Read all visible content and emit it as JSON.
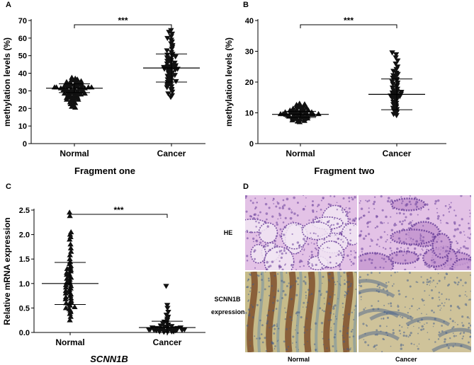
{
  "chart_data": [
    {
      "panel": "A",
      "type": "scatter",
      "title": "",
      "xlabel": "Fragment one",
      "ylabel": "methylation levels (%)",
      "categories": [
        "Normal",
        "Cancer"
      ],
      "ylim": [
        0,
        70
      ],
      "yticks": [
        0,
        10,
        20,
        30,
        40,
        50,
        60,
        70
      ],
      "series": [
        {
          "category": "Normal",
          "marker": "triangle-up",
          "mean": 31.5,
          "sd_lower": 29.0,
          "sd_upper": 34.0,
          "values": [
            20.5,
            21.0,
            22.0,
            22.5,
            23.0,
            23.5,
            24.0,
            24.5,
            25.0,
            25.0,
            25.5,
            25.5,
            26.0,
            26.0,
            26.5,
            26.5,
            27.0,
            27.0,
            27.5,
            27.5,
            28.0,
            28.0,
            28.0,
            28.5,
            28.5,
            29.0,
            29.0,
            29.0,
            29.5,
            29.5,
            30.0,
            30.0,
            30.0,
            30.5,
            30.5,
            30.5,
            31.0,
            31.0,
            31.0,
            31.0,
            31.5,
            31.5,
            31.5,
            31.5,
            32.0,
            32.0,
            32.0,
            32.0,
            32.5,
            32.5,
            32.5,
            33.0,
            33.0,
            33.0,
            33.5,
            33.5,
            33.5,
            34.0,
            34.0,
            34.5,
            34.5,
            35.0,
            35.0,
            35.5,
            36.0,
            36.0,
            36.5,
            37.0,
            37.5
          ]
        },
        {
          "category": "Cancer",
          "marker": "triangle-down",
          "mean": 43.0,
          "sd_lower": 35.0,
          "sd_upper": 51.0,
          "values": [
            26.5,
            27.5,
            28.5,
            29.5,
            30.5,
            31.0,
            32.0,
            32.5,
            33.0,
            33.5,
            34.0,
            34.5,
            35.0,
            35.5,
            36.0,
            36.5,
            37.0,
            37.5,
            38.0,
            38.5,
            39.0,
            39.5,
            40.0,
            40.5,
            41.0,
            41.5,
            42.0,
            42.0,
            42.5,
            42.5,
            43.0,
            43.0,
            43.5,
            43.5,
            44.0,
            44.0,
            44.5,
            45.0,
            45.5,
            46.0,
            46.5,
            47.0,
            47.5,
            48.0,
            48.5,
            49.0,
            49.5,
            50.0,
            50.5,
            51.0,
            52.0,
            53.0,
            54.0,
            55.0,
            56.0,
            57.0,
            58.0,
            59.0,
            60.0,
            61.0,
            62.5,
            63.5,
            64.5
          ]
        }
      ],
      "significance": "***"
    },
    {
      "panel": "B",
      "type": "scatter",
      "title": "",
      "xlabel": "Fragment two",
      "ylabel": "methylation levels (%)",
      "categories": [
        "Normal",
        "Cancer"
      ],
      "ylim": [
        0,
        40
      ],
      "yticks": [
        0,
        10,
        20,
        30,
        40
      ],
      "series": [
        {
          "category": "Normal",
          "marker": "triangle-up",
          "mean": 9.5,
          "sd_lower": 8.5,
          "sd_upper": 10.5,
          "values": [
            7.0,
            7.2,
            7.4,
            7.6,
            7.8,
            8.0,
            8.0,
            8.2,
            8.2,
            8.4,
            8.4,
            8.6,
            8.6,
            8.8,
            8.8,
            9.0,
            9.0,
            9.0,
            9.2,
            9.2,
            9.2,
            9.4,
            9.4,
            9.4,
            9.6,
            9.6,
            9.6,
            9.8,
            9.8,
            9.8,
            10.0,
            10.0,
            10.0,
            10.2,
            10.2,
            10.4,
            10.4,
            10.6,
            10.6,
            10.8,
            10.8,
            11.0,
            11.0,
            11.2,
            11.4,
            11.6,
            11.8,
            12.0,
            12.2,
            12.4,
            12.6,
            12.8,
            13.0
          ]
        },
        {
          "category": "Cancer",
          "marker": "triangle-down",
          "mean": 16.0,
          "sd_lower": 11.0,
          "sd_upper": 21.0,
          "values": [
            9.2,
            9.6,
            10.0,
            10.4,
            10.8,
            11.2,
            11.6,
            12.0,
            12.4,
            12.8,
            13.2,
            13.6,
            14.0,
            14.4,
            14.8,
            15.0,
            15.2,
            15.4,
            15.6,
            15.8,
            16.0,
            16.2,
            16.4,
            16.6,
            16.8,
            17.0,
            17.4,
            17.8,
            18.2,
            18.6,
            19.0,
            19.4,
            19.8,
            20.2,
            20.6,
            21.0,
            21.4,
            21.8,
            22.2,
            22.6,
            23.0,
            23.6,
            24.2,
            25.0,
            26.0,
            27.0,
            28.0,
            29.0,
            29.6
          ]
        }
      ],
      "significance": "***"
    },
    {
      "panel": "C",
      "type": "scatter",
      "title": "",
      "xlabel": "SCNN1B",
      "ylabel": "Relative mRNA expression",
      "categories": [
        "Normal",
        "Cancer"
      ],
      "ylim": [
        0,
        2.5
      ],
      "yticks": [
        0.0,
        0.5,
        1.0,
        1.5,
        2.0,
        2.5
      ],
      "series": [
        {
          "category": "Normal",
          "marker": "triangle-up",
          "mean": 1.0,
          "sd_lower": 0.57,
          "sd_upper": 1.43,
          "values": [
            0.25,
            0.32,
            0.38,
            0.42,
            0.45,
            0.48,
            0.5,
            0.52,
            0.55,
            0.58,
            0.6,
            0.62,
            0.65,
            0.68,
            0.7,
            0.72,
            0.75,
            0.78,
            0.8,
            0.82,
            0.85,
            0.87,
            0.9,
            0.92,
            0.95,
            0.97,
            1.0,
            1.02,
            1.05,
            1.08,
            1.1,
            1.12,
            1.15,
            1.18,
            1.2,
            1.22,
            1.25,
            1.28,
            1.3,
            1.33,
            1.36,
            1.4,
            1.44,
            1.5,
            1.58,
            1.65,
            1.72,
            1.8,
            1.9,
            1.95,
            2.0,
            2.05,
            2.38,
            2.45
          ]
        },
        {
          "category": "Cancer",
          "marker": "triangle-down",
          "mean": 0.1,
          "sd_lower": 0.0,
          "sd_upper": 0.23,
          "values": [
            0.01,
            0.01,
            0.02,
            0.02,
            0.02,
            0.03,
            0.03,
            0.03,
            0.04,
            0.04,
            0.04,
            0.05,
            0.05,
            0.05,
            0.06,
            0.06,
            0.06,
            0.07,
            0.07,
            0.07,
            0.08,
            0.08,
            0.09,
            0.09,
            0.1,
            0.1,
            0.11,
            0.12,
            0.13,
            0.14,
            0.16,
            0.18,
            0.2,
            0.22,
            0.25,
            0.28,
            0.32,
            0.36,
            0.42,
            0.5,
            0.56,
            0.95
          ]
        }
      ],
      "significance": "***"
    }
  ],
  "panels": {
    "A": {
      "letter": "A"
    },
    "B": {
      "letter": "B"
    },
    "C": {
      "letter": "C"
    },
    "D": {
      "letter": "D"
    }
  },
  "micrographs": {
    "row_labels": [
      "HE",
      "SCNN1B",
      "expression"
    ],
    "col_labels": [
      "Normal",
      "Cancer"
    ],
    "colors": {
      "he_bg": "#e3c2e6",
      "he_nuclei": "#6a3f9a",
      "he_stroma": "#c79ad2",
      "ihc_bg": "#c6bb8a",
      "ihc_brown": "#7a4a26",
      "ihc_blue": "#3d5a8c"
    }
  }
}
